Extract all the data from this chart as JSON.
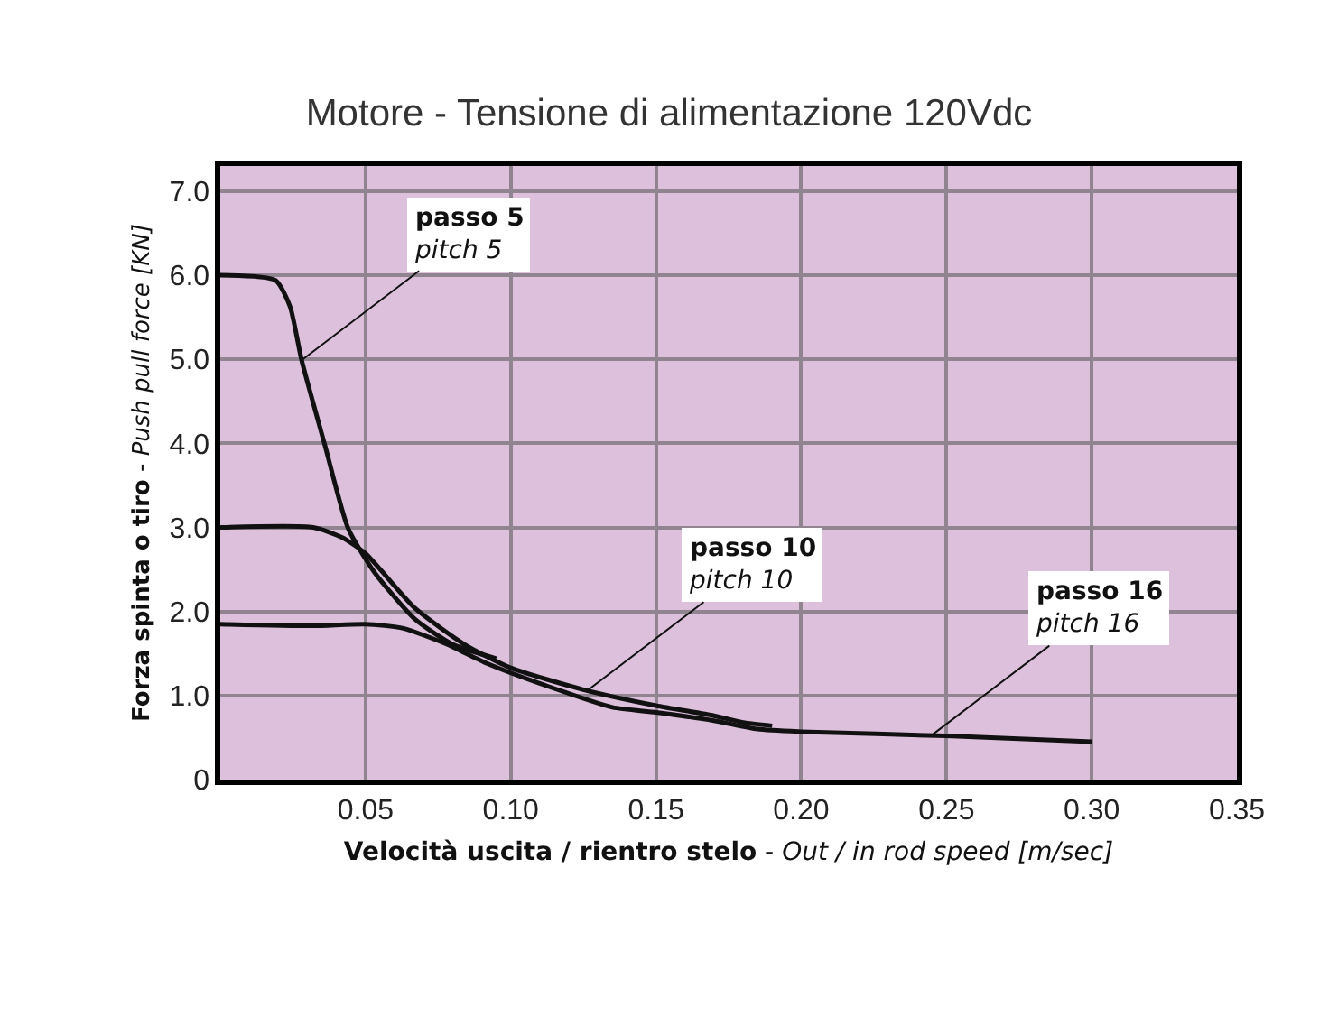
{
  "chart_data": {
    "type": "line",
    "title": "Motore - Tensione di alimentazione 120Vdc",
    "xlabel": "Velocità uscita / rientro stelo - Out / in rod speed [m/sec]",
    "ylabel": "Forza spinta o tiro - Push pull force [KN]",
    "series": [
      {
        "color": "#111111",
        "x": [
          0,
          0.019,
          0.024,
          0.028,
          0.036,
          0.044,
          0.053,
          0.067,
          0.08,
          0.095
        ],
        "values": [
          6.0,
          5.94,
          5.63,
          4.99,
          3.98,
          2.99,
          2.47,
          1.91,
          1.61,
          1.44
        ]
      },
      {
        "color": "#111111",
        "x": [
          0,
          0.032,
          0.042,
          0.05,
          0.067,
          0.084,
          0.1,
          0.125,
          0.15,
          0.17,
          0.18,
          0.19
        ],
        "values": [
          3.0,
          3.0,
          2.88,
          2.69,
          2.04,
          1.61,
          1.33,
          1.07,
          0.88,
          0.76,
          0.68,
          0.64
        ]
      },
      {
        "color": "#111111",
        "x": [
          0,
          0.032,
          0.05,
          0.063,
          0.078,
          0.092,
          0.112,
          0.135,
          0.15,
          0.17,
          0.185,
          0.2,
          0.25,
          0.3
        ],
        "values": [
          1.85,
          1.83,
          1.85,
          1.8,
          1.61,
          1.38,
          1.12,
          0.86,
          0.8,
          0.7,
          0.6,
          0.57,
          0.52,
          0.45
        ]
      }
    ],
    "annotations": [
      {
        "text": "passo 5\npitch 5",
        "x": 0.028,
        "y": 4.99
      },
      {
        "text": "passo 10\npitch 10",
        "x": 0.126,
        "y": 1.05
      },
      {
        "text": "passo 16\npitch 16",
        "x": 0.245,
        "y": 0.53
      }
    ],
    "xlim": [
      0,
      0.35
    ],
    "ylim": [
      0,
      7.3
    ],
    "xticks": [
      0.05,
      {
        "value": 0.1,
        "label": "0.10"
      },
      0.15,
      {
        "value": 0.2,
        "label": "0.20"
      },
      0.25,
      {
        "value": 0.3,
        "label": "0.30"
      },
      0.35
    ],
    "yticks": [
      0,
      {
        "value": 1,
        "label": "1.0"
      },
      {
        "value": 2,
        "label": "2.0"
      },
      {
        "value": 3,
        "label": "3.0"
      },
      {
        "value": 4,
        "label": "4.0"
      },
      {
        "value": 5,
        "label": "5.0"
      },
      {
        "value": 6,
        "label": "6.0"
      },
      {
        "value": 7,
        "label": "7.0"
      }
    ],
    "grid": true,
    "marker": "none",
    "line_style": "solid"
  }
}
